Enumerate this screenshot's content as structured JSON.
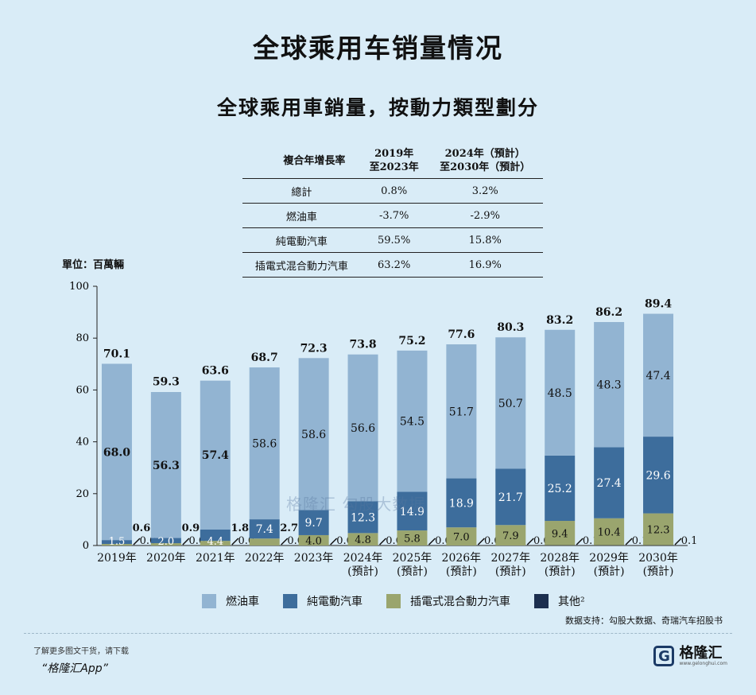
{
  "title": "全球乘用车销量情况",
  "subtitle": "全球乘用車銷量，按動力類型劃分",
  "cagr_table": {
    "header_label": "複合年增長率",
    "col1_line1": "2019年",
    "col1_line2": "至2023年",
    "col2_line1": "2024年（預計）",
    "col2_line2": "至2030年（預計）",
    "rows": [
      {
        "label": "總計",
        "v1": "0.8%",
        "v2": "3.2%"
      },
      {
        "label": "燃油車",
        "v1": "-3.7%",
        "v2": "-2.9%"
      },
      {
        "label": "純電動汽車",
        "v1": "59.5%",
        "v2": "15.8%"
      },
      {
        "label": "插電式混合動力汽車",
        "v1": "63.2%",
        "v2": "16.9%"
      }
    ]
  },
  "unit_label": "單位：百萬輛",
  "legend": {
    "fuel": "燃油車",
    "bev": "純電動汽車",
    "phev": "插電式混合動力汽車",
    "other": "其他²"
  },
  "source": "数据支持：勾股大数据、奇瑞汽车招股书",
  "footer": {
    "note": "了解更多图文干货，请下载",
    "app": "“格隆汇App”"
  },
  "logo": {
    "name": "格隆汇",
    "url": "www.gelonghui.com"
  },
  "watermark": "格隆汇   勾股大数据",
  "colors": {
    "fuel": "#92b4d2",
    "bev": "#3d6d9c",
    "phev": "#9aa56e",
    "other": "#1c2f4f",
    "background": "#d9ecf7"
  },
  "chart_data": {
    "type": "bar",
    "stacked": true,
    "categories": [
      "2019年",
      "2020年",
      "2021年",
      "2022年",
      "2023年",
      "2024年\n(預計)",
      "2025年\n(預計)",
      "2026年\n(預計)",
      "2027年\n(預計)",
      "2028年\n(預計)",
      "2029年\n(預計)",
      "2030年\n(預計)"
    ],
    "series": [
      {
        "name": "其他²",
        "key": "other",
        "values": [
          0.0,
          0.0,
          0.0,
          0.0,
          0.0,
          0.0,
          0.0,
          0.0,
          0.0,
          0.1,
          0.1,
          0.1
        ]
      },
      {
        "name": "插電式混合動力汽車",
        "key": "phev",
        "values": [
          0.6,
          0.9,
          1.8,
          2.7,
          4.0,
          4.8,
          5.8,
          7.0,
          7.9,
          9.4,
          10.4,
          12.3
        ]
      },
      {
        "name": "純電動汽車",
        "key": "bev",
        "values": [
          1.5,
          2.0,
          4.4,
          7.4,
          9.7,
          12.3,
          14.9,
          18.9,
          21.7,
          25.2,
          27.4,
          29.6
        ]
      },
      {
        "name": "燃油車",
        "key": "fuel",
        "values": [
          68.0,
          56.3,
          57.4,
          58.6,
          58.6,
          56.6,
          54.5,
          51.7,
          50.7,
          48.5,
          48.3,
          47.4
        ]
      }
    ],
    "totals": [
      70.1,
      59.3,
      63.6,
      68.7,
      72.3,
      73.8,
      75.2,
      77.6,
      80.3,
      83.2,
      86.2,
      89.4
    ],
    "ylim": [
      0,
      100
    ],
    "yticks": [
      0,
      20,
      40,
      60,
      80,
      100
    ],
    "legend_position": "bottom"
  }
}
